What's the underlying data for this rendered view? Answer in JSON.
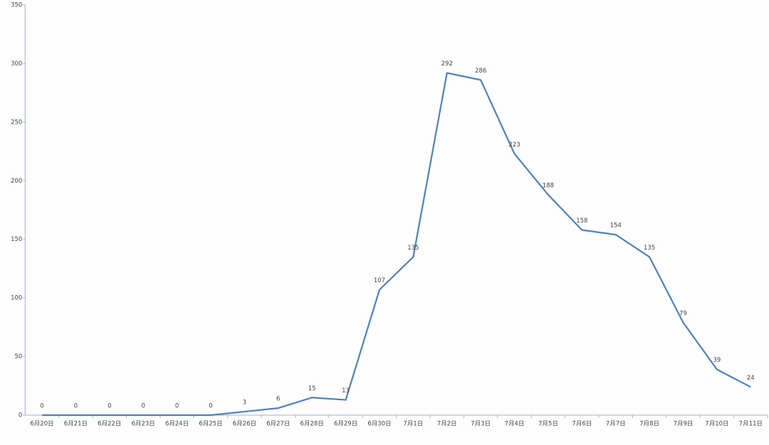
{
  "chart_data": {
    "type": "line",
    "categories": [
      "6月20日",
      "6月21日",
      "6月22日",
      "6月23日",
      "6月24日",
      "6月25日",
      "6月26日",
      "6月27日",
      "6月28日",
      "6月29日",
      "6月30日",
      "7月1日",
      "7月2日",
      "7月3日",
      "7月4日",
      "7月5日",
      "7月6日",
      "7月7日",
      "7月8日",
      "7月9日",
      "7月10日",
      "7月11日"
    ],
    "values": [
      0,
      0,
      0,
      0,
      0,
      0,
      3,
      6,
      15,
      13,
      107,
      135,
      292,
      286,
      223,
      188,
      158,
      154,
      135,
      79,
      39,
      24
    ],
    "color": "#4f81bd",
    "ylim": [
      0,
      350
    ],
    "yticks": [
      0,
      50,
      100,
      150,
      200,
      250,
      300,
      350
    ],
    "grid": false
  }
}
